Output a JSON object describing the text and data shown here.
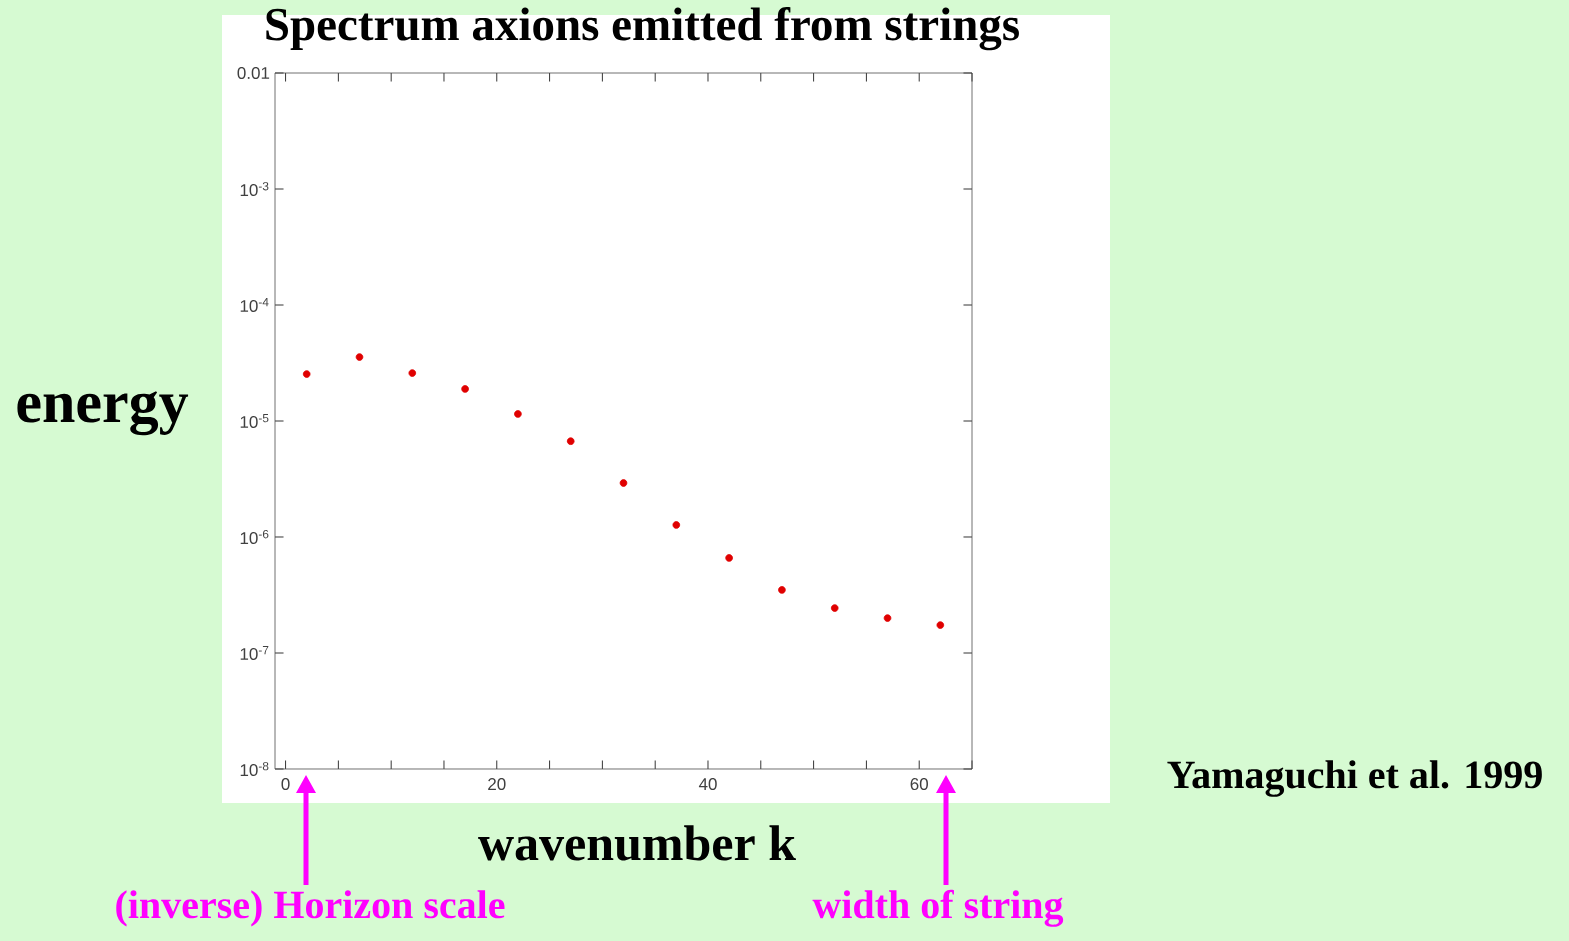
{
  "chart_data": {
    "type": "scatter",
    "title": "Spectrum axions emitted from strings",
    "xlabel": "wavenumber k",
    "ylabel": "energy",
    "x": [
      2,
      7,
      12,
      17,
      22,
      27,
      32,
      37,
      42,
      47,
      52,
      57,
      62
    ],
    "series": [
      {
        "color": "#e00000",
        "values": [
          2.54e-05,
          3.56e-05,
          2.59e-05,
          1.89e-05,
          1.15e-05,
          6.7e-06,
          2.92e-06,
          1.27e-06,
          6.6e-07,
          3.5e-07,
          2.44e-07,
          2e-07,
          1.74e-07
        ]
      }
    ],
    "marker": "circle",
    "log": "y",
    "xlim": [
      -1,
      65
    ],
    "ylim": [
      1e-08,
      0.01
    ],
    "xticks": [
      0,
      {
        "value": 5,
        "label": null
      },
      {
        "value": 10,
        "label": null
      },
      {
        "value": 15,
        "label": null
      },
      20,
      {
        "value": 25,
        "label": null
      },
      {
        "value": 30,
        "label": null
      },
      {
        "value": 35,
        "label": null
      },
      40,
      {
        "value": 45,
        "label": null
      },
      {
        "value": 50,
        "label": null
      },
      {
        "value": 55,
        "label": null
      },
      60,
      {
        "value": 65,
        "label": null
      }
    ],
    "yticks": [
      {
        "value": 1e-08,
        "label": "10$^{-8}$"
      },
      {
        "value": 1e-07,
        "label": "10$^{-7}$"
      },
      {
        "value": 1e-06,
        "label": "10$^{-6}$"
      },
      {
        "value": 1e-05,
        "label": "10$^{-5}$"
      },
      {
        "value": 0.0001,
        "label": "10$^{-4}$"
      },
      {
        "value": 0.001,
        "label": "10$^{-3}$"
      },
      0.01
    ],
    "annotations": [
      "(inverse) Horizon scale",
      "width of string",
      "Yamaguchi et al. 1999"
    ]
  }
}
